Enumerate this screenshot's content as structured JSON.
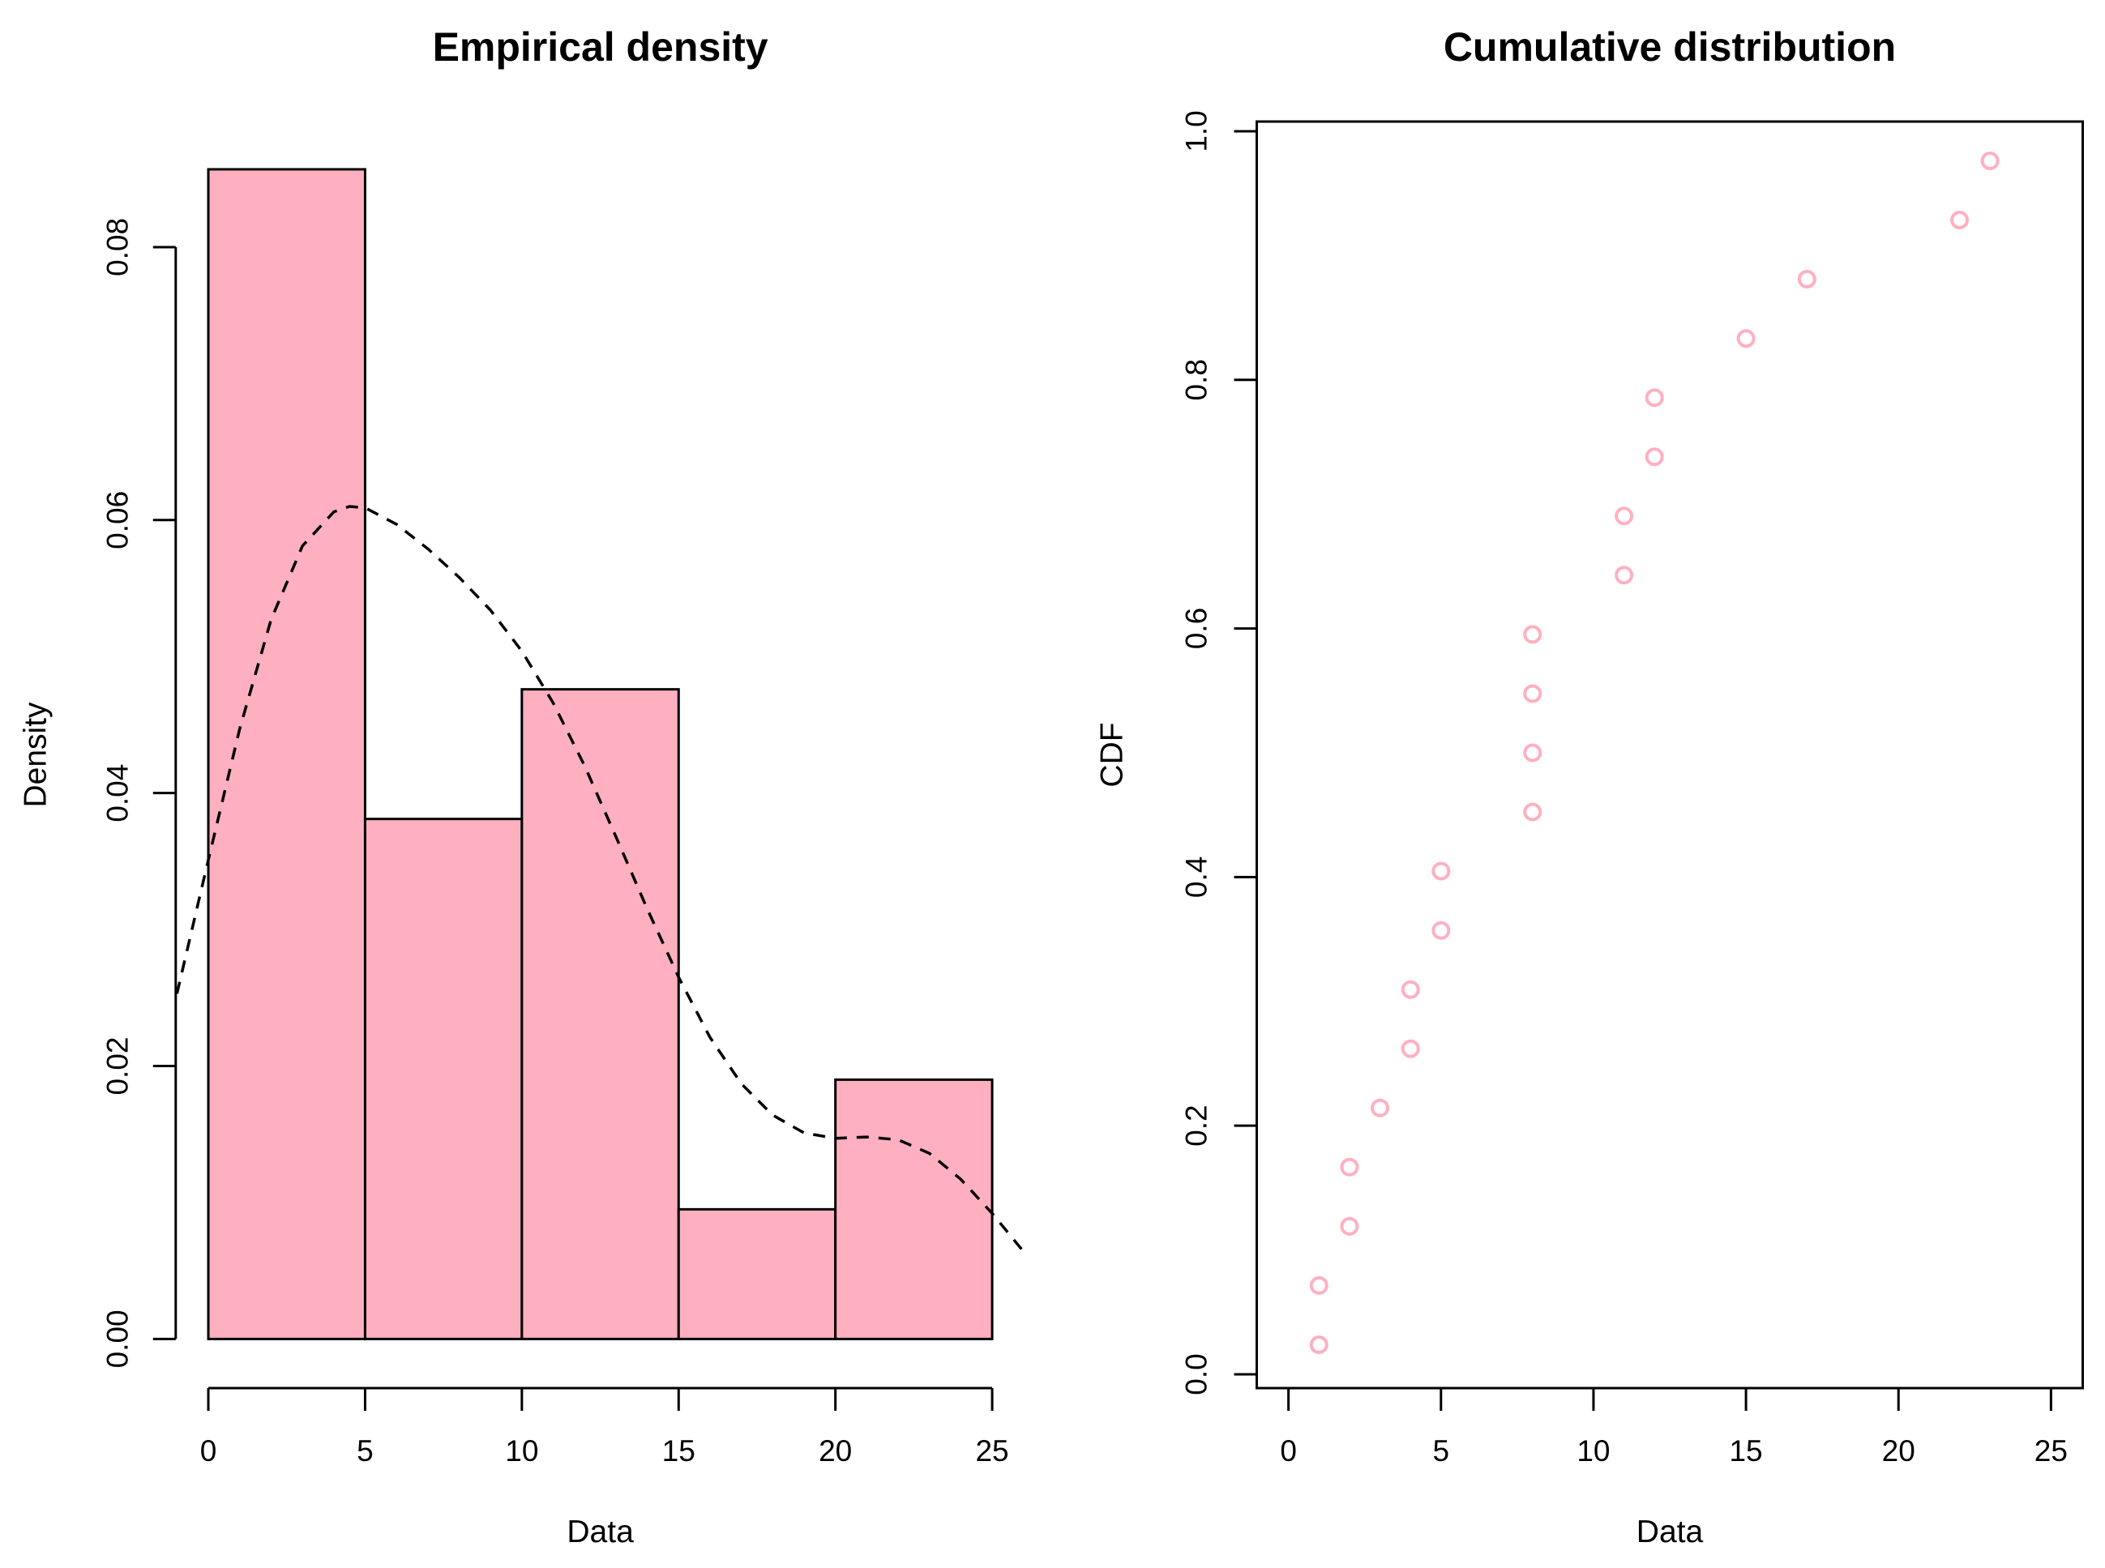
{
  "figure": {
    "background": "#ffffff",
    "foreground": "#000000",
    "accent_pink": "#ffb0c0"
  },
  "chart_data": [
    {
      "type": "bar",
      "subtype": "histogram-with-density-curve",
      "title": "Empirical density",
      "xlabel": "Data",
      "ylabel": "Density",
      "x_ticks": [
        0,
        5,
        10,
        15,
        20,
        25
      ],
      "y_ticks": [
        0,
        0.02,
        0.04,
        0.06,
        0.08
      ],
      "y_tick_labels": [
        "0.00",
        "0.02",
        "0.04",
        "0.06",
        "0.08"
      ],
      "xlim": [
        -1.04,
        26.04
      ],
      "ylim": [
        -0.0036,
        0.0892
      ],
      "grid": "off",
      "legend": "none",
      "bar_fill": "#ffb0c0",
      "bar_edge": "#000000",
      "bins": [
        {
          "from": 0,
          "to": 5,
          "density": 0.0857
        },
        {
          "from": 5,
          "to": 10,
          "density": 0.0381
        },
        {
          "from": 10,
          "to": 15,
          "density": 0.0476
        },
        {
          "from": 15,
          "to": 20,
          "density": 0.0095
        },
        {
          "from": 20,
          "to": 25,
          "density": 0.019
        }
      ],
      "density_curve": {
        "style": "dashed",
        "color": "#000000",
        "x": [
          -1,
          0,
          1,
          2,
          3,
          4,
          4.5,
          5,
          6,
          7,
          8,
          9,
          10,
          11,
          12,
          13,
          14,
          15,
          16,
          17,
          18,
          19,
          20,
          21,
          22,
          23,
          24,
          25,
          26
        ],
        "y": [
          0.0253,
          0.0351,
          0.0447,
          0.0527,
          0.0581,
          0.0606,
          0.061,
          0.0609,
          0.0597,
          0.0579,
          0.0558,
          0.0534,
          0.0504,
          0.0466,
          0.042,
          0.0368,
          0.0315,
          0.0265,
          0.0221,
          0.0187,
          0.0164,
          0.0151,
          0.0147,
          0.0148,
          0.0146,
          0.0136,
          0.0117,
          0.0092,
          0.0064
        ]
      }
    },
    {
      "type": "scatter",
      "subtype": "empirical-cdf",
      "title": "Cumulative distribution",
      "xlabel": "Data",
      "ylabel": "CDF",
      "x_ticks": [
        0,
        5,
        10,
        15,
        20,
        25
      ],
      "y_ticks": [
        0,
        0.2,
        0.4,
        0.6,
        0.8,
        1.0
      ],
      "y_tick_labels": [
        "0.0",
        "0.2",
        "0.4",
        "0.6",
        "0.8",
        "1.0"
      ],
      "xlim": [
        -1.04,
        26.04
      ],
      "ylim": [
        -0.0111,
        1.0078
      ],
      "grid": "off",
      "legend": "none",
      "point_color": "#ffb0c0",
      "point_shape": "open-circle",
      "points": [
        {
          "x": 1,
          "y": 0.0238
        },
        {
          "x": 1,
          "y": 0.0714
        },
        {
          "x": 2,
          "y": 0.119
        },
        {
          "x": 2,
          "y": 0.1667
        },
        {
          "x": 3,
          "y": 0.2143
        },
        {
          "x": 4,
          "y": 0.2619
        },
        {
          "x": 4,
          "y": 0.3095
        },
        {
          "x": 5,
          "y": 0.3571
        },
        {
          "x": 5,
          "y": 0.4048
        },
        {
          "x": 8,
          "y": 0.4524
        },
        {
          "x": 8,
          "y": 0.5
        },
        {
          "x": 8,
          "y": 0.5476
        },
        {
          "x": 8,
          "y": 0.5952
        },
        {
          "x": 11,
          "y": 0.6429
        },
        {
          "x": 11,
          "y": 0.6905
        },
        {
          "x": 12,
          "y": 0.7381
        },
        {
          "x": 12,
          "y": 0.7857
        },
        {
          "x": 15,
          "y": 0.8333
        },
        {
          "x": 17,
          "y": 0.881
        },
        {
          "x": 22,
          "y": 0.9286
        },
        {
          "x": 23,
          "y": 0.9762
        }
      ]
    }
  ]
}
